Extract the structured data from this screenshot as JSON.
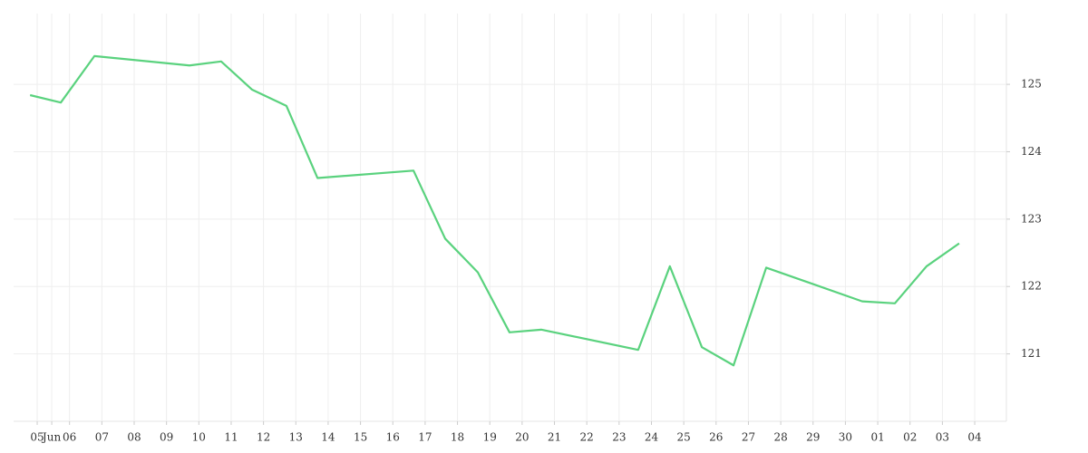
{
  "chart_data": {
    "type": "line",
    "x": [
      -0.22,
      0.73,
      1.77,
      4.71,
      5.69,
      6.65,
      7.71,
      8.67,
      11.64,
      12.62,
      13.63,
      14.61,
      15.59,
      18.59,
      19.57,
      20.56,
      21.54,
      22.55,
      25.52,
      26.53,
      27.51,
      28.52
    ],
    "series": [
      {
        "color": "#5ad27e",
        "values": [
          124.84,
          124.73,
          125.42,
          125.28,
          125.34,
          124.92,
          124.68,
          123.61,
          123.72,
          122.71,
          122.21,
          121.32,
          121.36,
          121.06,
          122.3,
          121.1,
          120.83,
          122.28,
          121.78,
          121.75,
          122.3,
          122.64
        ]
      }
    ],
    "xlim": [
      -0.73,
      29.98
    ],
    "xticks": [
      {
        "value": 0,
        "label": "05"
      },
      {
        "value": 0.45,
        "label": "Jun"
      },
      {
        "value": 1,
        "label": "06"
      },
      {
        "value": 2,
        "label": "07"
      },
      {
        "value": 3,
        "label": "08"
      },
      {
        "value": 4,
        "label": "09"
      },
      {
        "value": 5,
        "label": "10"
      },
      {
        "value": 6,
        "label": "11"
      },
      {
        "value": 7,
        "label": "12"
      },
      {
        "value": 8,
        "label": "13"
      },
      {
        "value": 9,
        "label": "14"
      },
      {
        "value": 10,
        "label": "15"
      },
      {
        "value": 11,
        "label": "16"
      },
      {
        "value": 12,
        "label": "17"
      },
      {
        "value": 13,
        "label": "18"
      },
      {
        "value": 14,
        "label": "19"
      },
      {
        "value": 15,
        "label": "20"
      },
      {
        "value": 16,
        "label": "21"
      },
      {
        "value": 17,
        "label": "22"
      },
      {
        "value": 18,
        "label": "23"
      },
      {
        "value": 19,
        "label": "24"
      },
      {
        "value": 20,
        "label": "25"
      },
      {
        "value": 21,
        "label": "26"
      },
      {
        "value": 22,
        "label": "27"
      },
      {
        "value": 23,
        "label": "28"
      },
      {
        "value": 24,
        "label": "29"
      },
      {
        "value": 25,
        "label": "30"
      },
      {
        "value": 26,
        "label": "01"
      },
      {
        "value": 27,
        "label": "02"
      },
      {
        "value": 28,
        "label": "03"
      },
      {
        "value": 29,
        "label": "04"
      }
    ],
    "ylim": [
      120,
      126.05
    ],
    "yticks": [
      121,
      122,
      123,
      124,
      125
    ],
    "grid": true
  }
}
